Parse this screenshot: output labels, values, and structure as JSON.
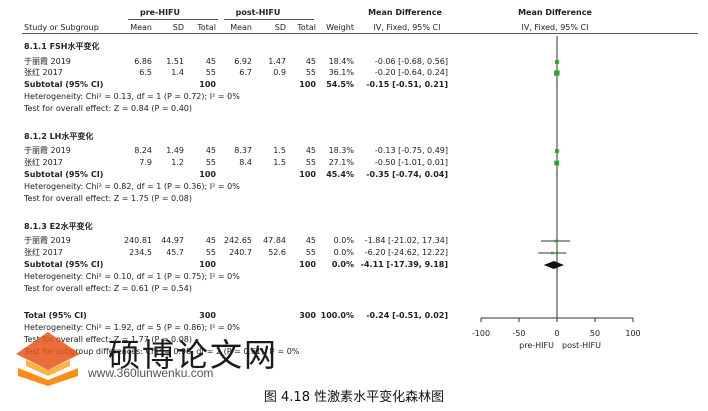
{
  "header": {
    "group_pre": "pre-HIFU",
    "group_post": "post-HIFU",
    "md_title": "Mean Difference",
    "md_title_right": "Mean Difference",
    "col_study": "Study or Subgroup",
    "col_mean": "Mean",
    "col_sd": "SD",
    "col_total": "Total",
    "col_weight": "Weight",
    "col_ci": "IV, Fixed, 95% CI",
    "col_ci_right": "IV, Fixed, 95% CI"
  },
  "subgroups": [
    {
      "label": "8.1.1 FSH水平变化",
      "studies": [
        {
          "name": "于丽霞 2019",
          "pre_mean": "6.86",
          "pre_sd": "1.51",
          "pre_total": "45",
          "post_mean": "6.92",
          "post_sd": "1.47",
          "post_total": "45",
          "weight": "18.4%",
          "ci": "-0.06 [-0.68, 0.56]",
          "md": -0.06,
          "lo": -0.68,
          "hi": 0.56,
          "w": 18.4
        },
        {
          "name": "张红 2017",
          "pre_mean": "6.5",
          "pre_sd": "1.4",
          "pre_total": "55",
          "post_mean": "6.7",
          "post_sd": "0.9",
          "post_total": "55",
          "weight": "36.1%",
          "ci": "-0.20 [-0.64, 0.24]",
          "md": -0.2,
          "lo": -0.64,
          "hi": 0.24,
          "w": 36.1
        }
      ],
      "subtotal": {
        "label": "Subtotal (95% CI)",
        "pre_total": "100",
        "post_total": "100",
        "weight": "54.5%",
        "ci": "-0.15 [-0.51, 0.21]",
        "md": -0.15,
        "lo": -0.51,
        "hi": 0.21
      },
      "heterogeneity": "Heterogeneity: Chi² = 0.13, df = 1 (P = 0.72); I² = 0%",
      "overall": "Test for overall effect: Z = 0.84 (P = 0.40)"
    },
    {
      "label": "8.1.2 LH水平变化",
      "studies": [
        {
          "name": "于丽霞 2019",
          "pre_mean": "8.24",
          "pre_sd": "1.49",
          "pre_total": "45",
          "post_mean": "8.37",
          "post_sd": "1.5",
          "post_total": "45",
          "weight": "18.3%",
          "ci": "-0.13 [-0.75, 0.49]",
          "md": -0.13,
          "lo": -0.75,
          "hi": 0.49,
          "w": 18.3
        },
        {
          "name": "张红 2017",
          "pre_mean": "7.9",
          "pre_sd": "1.2",
          "pre_total": "55",
          "post_mean": "8.4",
          "post_sd": "1.5",
          "post_total": "55",
          "weight": "27.1%",
          "ci": "-0.50 [-1.01, 0.01]",
          "md": -0.5,
          "lo": -1.01,
          "hi": 0.01,
          "w": 27.1
        }
      ],
      "subtotal": {
        "label": "Subtotal (95% CI)",
        "pre_total": "100",
        "post_total": "100",
        "weight": "45.4%",
        "ci": "-0.35 [-0.74, 0.04]",
        "md": -0.35,
        "lo": -0.74,
        "hi": 0.04
      },
      "heterogeneity": "Heterogeneity: Chi² = 0.82, df = 1 (P = 0.36); I² = 0%",
      "overall": "Test for overall effect: Z = 1.75 (P = 0.08)"
    },
    {
      "label": "8.1.3 E2水平变化",
      "studies": [
        {
          "name": "于丽霞 2019",
          "pre_mean": "240.81",
          "pre_sd": "44.97",
          "pre_total": "45",
          "post_mean": "242.65",
          "post_sd": "47.84",
          "post_total": "45",
          "weight": "0.0%",
          "ci": "-1.84 [-21.02, 17.34]",
          "md": -1.84,
          "lo": -21.02,
          "hi": 17.34,
          "w": 0.0
        },
        {
          "name": "张红 2017",
          "pre_mean": "234.5",
          "pre_sd": "45.7",
          "pre_total": "55",
          "post_mean": "240.7",
          "post_sd": "52.6",
          "post_total": "55",
          "weight": "0.0%",
          "ci": "-6.20 [-24.62, 12.22]",
          "md": -6.2,
          "lo": -24.62,
          "hi": 12.22,
          "w": 0.0
        }
      ],
      "subtotal": {
        "label": "Subtotal (95% CI)",
        "pre_total": "100",
        "post_total": "100",
        "weight": "0.0%",
        "ci": "-4.11 [-17.39, 9.18]",
        "md": -4.11,
        "lo": -17.39,
        "hi": 9.18
      },
      "heterogeneity": "Heterogeneity: Chi² = 0.10, df = 1 (P = 0.75); I² = 0%",
      "overall": "Test for overall effect: Z = 0.61 (P = 0.54)"
    }
  ],
  "total": {
    "label": "Total (95% CI)",
    "pre_total": "300",
    "post_total": "300",
    "weight": "100.0%",
    "ci": "-0.24 [-0.51, 0.02]",
    "md": -0.24,
    "lo": -0.51,
    "hi": 0.02
  },
  "footer": {
    "heterogeneity": "Heterogeneity: Chi² = 1.92, df = 5 (P = 0.86); I² = 0%",
    "overall": "Test for overall effect: Z = 1.77 (P = 0.08)",
    "subgroup": "Test for subgroup differences: Chi² = 0.98, df = 2 (P = 0.61), I² = 0%"
  },
  "axis": {
    "ticks": [
      "-100",
      "-50",
      "0",
      "50",
      "100"
    ],
    "tick_values": [
      -100,
      -50,
      0,
      50,
      100
    ],
    "left_label": "pre-HIFU",
    "right_label": "post-HIFU",
    "range": [
      -100,
      100
    ]
  },
  "watermark": {
    "brand": "硕博论文网",
    "url": "www.360lunwenku.com"
  },
  "caption": "图 4.18 性激素水平变化森林图",
  "chart_data": {
    "type": "forest",
    "title": "图 4.18 性激素水平变化森林图",
    "xlabel_left": "pre-HIFU",
    "xlabel_right": "post-HIFU",
    "xlim": [
      -100,
      100
    ],
    "series": [
      {
        "name": "8.1.1 FSH水平变化",
        "studies": [
          {
            "study": "于丽霞 2019",
            "md": -0.06,
            "ci": [
              -0.68,
              0.56
            ],
            "weight": 18.4
          },
          {
            "study": "张红 2017",
            "md": -0.2,
            "ci": [
              -0.64,
              0.24
            ],
            "weight": 36.1
          }
        ],
        "subtotal": {
          "md": -0.15,
          "ci": [
            -0.51,
            0.21
          ],
          "weight": 54.5
        }
      },
      {
        "name": "8.1.2 LH水平变化",
        "studies": [
          {
            "study": "于丽霞 2019",
            "md": -0.13,
            "ci": [
              -0.75,
              0.49
            ],
            "weight": 18.3
          },
          {
            "study": "张红 2017",
            "md": -0.5,
            "ci": [
              -1.01,
              0.01
            ],
            "weight": 27.1
          }
        ],
        "subtotal": {
          "md": -0.35,
          "ci": [
            -0.74,
            0.04
          ],
          "weight": 45.4
        }
      },
      {
        "name": "8.1.3 E2水平变化",
        "studies": [
          {
            "study": "于丽霞 2019",
            "md": -1.84,
            "ci": [
              -21.02,
              17.34
            ],
            "weight": 0.0
          },
          {
            "study": "张红 2017",
            "md": -6.2,
            "ci": [
              -24.62,
              12.22
            ],
            "weight": 0.0
          }
        ],
        "subtotal": {
          "md": -4.11,
          "ci": [
            -17.39,
            9.18
          ],
          "weight": 0.0
        }
      }
    ],
    "total": {
      "md": -0.24,
      "ci": [
        -0.51,
        0.02
      ],
      "weight": 100.0
    }
  }
}
